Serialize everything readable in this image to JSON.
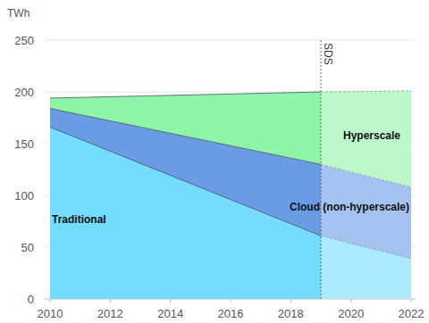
{
  "chart_data": {
    "type": "area",
    "stacked": true,
    "grid": true,
    "y_label": "TWh",
    "x": [
      2010,
      2019,
      2022
    ],
    "xlim": [
      2010,
      2022
    ],
    "xticks": [
      2010,
      2012,
      2014,
      2016,
      2018,
      2020,
      2022
    ],
    "ylim": [
      0,
      250
    ],
    "yticks": [
      0,
      50,
      100,
      150,
      200,
      250
    ],
    "series": [
      {
        "name": "Traditional",
        "color": "#73dcff",
        "values": [
          166,
          61,
          39
        ]
      },
      {
        "name": "Cloud (non-hyperscale)",
        "color": "#6a9ce6",
        "values": [
          18,
          69,
          69
        ]
      },
      {
        "name": "Hyperscale",
        "color": "#8ef5a8",
        "values": [
          10,
          70,
          93
        ]
      }
    ],
    "annotations": [
      {
        "text": "SDS",
        "x": 2019
      }
    ]
  }
}
